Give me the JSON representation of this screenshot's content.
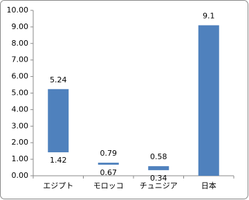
{
  "chart_data": {
    "type": "floating-bar",
    "categories": [
      "エジプト",
      "モロッコ",
      "チュニジア",
      "日本"
    ],
    "series": [
      {
        "color": "#4f81bd",
        "low": [
          1.42,
          0.67,
          0.34,
          0
        ],
        "low_labels": [
          "1.42",
          "0.67",
          "0.34",
          null
        ],
        "values": [
          5.24,
          0.79,
          0.58,
          9.1
        ]
      }
    ],
    "ylim": [
      0,
      10
    ],
    "yticks": [
      {
        "value": 0,
        "label": "0.00"
      },
      {
        "value": 1,
        "label": "1.00"
      },
      {
        "value": 2,
        "label": "2.00"
      },
      {
        "value": 3,
        "label": "3.00"
      },
      {
        "value": 4,
        "label": "4.00"
      },
      {
        "value": 5,
        "label": "5.00"
      },
      {
        "value": 6,
        "label": "6.00"
      },
      {
        "value": 7,
        "label": "7.00"
      },
      {
        "value": 8,
        "label": "8.00"
      },
      {
        "value": 9,
        "label": "9.00"
      },
      {
        "value": 10,
        "label": "10.00"
      }
    ],
    "grid": false
  }
}
